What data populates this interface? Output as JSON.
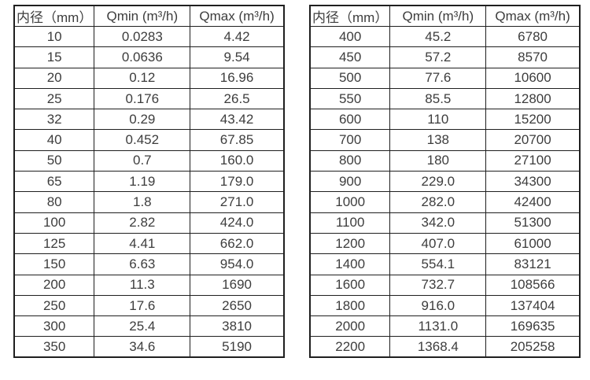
{
  "page": {
    "background_color": "#ffffff",
    "text_color": "#3d3d3d",
    "border_color": "#1f1f1f"
  },
  "tables": [
    {
      "name": "flow-spec-small-diameters",
      "headers": [
        "内径（mm）",
        "Qmin (m³/h)",
        "Qmax (m³/h)"
      ],
      "rows": [
        [
          "10",
          "0.0283",
          "4.42"
        ],
        [
          "15",
          "0.0636",
          "9.54"
        ],
        [
          "20",
          "0.12",
          "16.96"
        ],
        [
          "25",
          "0.176",
          "26.5"
        ],
        [
          "32",
          "0.29",
          "43.42"
        ],
        [
          "40",
          "0.452",
          "67.85"
        ],
        [
          "50",
          "0.7",
          "160.0"
        ],
        [
          "65",
          "1.19",
          "179.0"
        ],
        [
          "80",
          "1.8",
          "271.0"
        ],
        [
          "100",
          "2.82",
          "424.0"
        ],
        [
          "125",
          "4.41",
          "662.0"
        ],
        [
          "150",
          "6.63",
          "954.0"
        ],
        [
          "200",
          "11.3",
          "1690"
        ],
        [
          "250",
          "17.6",
          "2650"
        ],
        [
          "300",
          "25.4",
          "3810"
        ],
        [
          "350",
          "34.6",
          "5190"
        ]
      ]
    },
    {
      "name": "flow-spec-large-diameters",
      "headers": [
        "内径（mm）",
        "Qmin (m³/h)",
        "Qmax (m³/h)"
      ],
      "rows": [
        [
          "400",
          "45.2",
          "6780"
        ],
        [
          "450",
          "57.2",
          "8570"
        ],
        [
          "500",
          "77.6",
          "10600"
        ],
        [
          "550",
          "85.5",
          "12800"
        ],
        [
          "600",
          "110",
          "15200"
        ],
        [
          "700",
          "138",
          "20700"
        ],
        [
          "800",
          "180",
          "27100"
        ],
        [
          "900",
          "229.0",
          "34300"
        ],
        [
          "1000",
          "282.0",
          "42400"
        ],
        [
          "1100",
          "342.0",
          "51300"
        ],
        [
          "1200",
          "407.0",
          "61000"
        ],
        [
          "1400",
          "554.1",
          "83121"
        ],
        [
          "1600",
          "732.7",
          "108566"
        ],
        [
          "1800",
          "916.0",
          "137404"
        ],
        [
          "2000",
          "1131.0",
          "169635"
        ],
        [
          "2200",
          "1368.4",
          "205258"
        ]
      ]
    }
  ]
}
